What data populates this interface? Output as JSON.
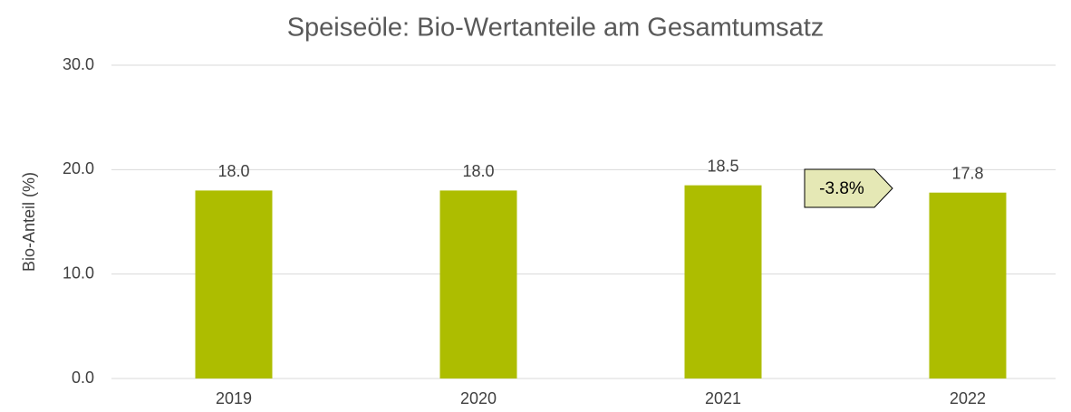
{
  "chart_data": {
    "type": "bar",
    "title": "Speiseöle: Bio-Wertanteile am Gesamtumsatz",
    "y_label": "Bio-Anteil (%)",
    "categories": [
      "2019",
      "2020",
      "2021",
      "2022"
    ],
    "values": [
      18.0,
      18.0,
      18.5,
      17.8
    ],
    "value_labels": [
      "18.0",
      "18.0",
      "18.5",
      "17.8"
    ],
    "color": "#adbd00",
    "ylim": [
      0,
      30
    ],
    "yticks": [
      {
        "value": 0,
        "label": "0.0"
      },
      {
        "value": 10,
        "label": "10.0"
      },
      {
        "value": 20,
        "label": "20.0"
      },
      {
        "value": 30,
        "label": "30.0"
      }
    ],
    "grid": true,
    "annotation": "-3.8%"
  }
}
